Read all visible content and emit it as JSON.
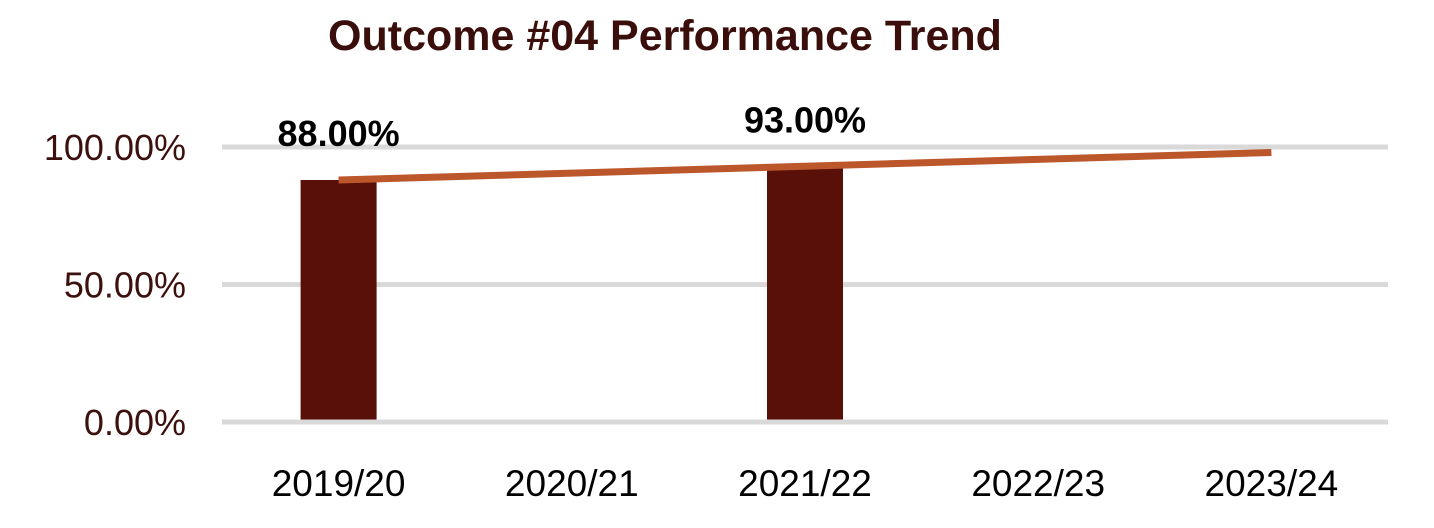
{
  "chart_data": {
    "type": "bar",
    "title": "Outcome #04 Performance Trend",
    "categories": [
      "2019/20",
      "2020/21",
      "2021/22",
      "2022/23",
      "2023/24"
    ],
    "series": [
      {
        "name": "Outcome #04",
        "values": [
          88,
          null,
          93,
          null,
          null
        ]
      }
    ],
    "data_labels": [
      "88.00%",
      null,
      "93.00%",
      null,
      null
    ],
    "trendline": {
      "start_value": 88,
      "end_value": 98
    },
    "xlabel": "",
    "ylabel": "",
    "ylim": [
      0,
      100
    ],
    "yticks": [
      0,
      50,
      100
    ],
    "ytick_labels": [
      "0.00%",
      "50.00%",
      "100.00%"
    ],
    "grid": true,
    "legend": false,
    "colors": {
      "bar": "#581008",
      "trendline": "#BC562B",
      "gridline": "#D9D9D9",
      "title": "#3A0F0B",
      "ytick_label": "#3B100D",
      "xtick_label": "#000000",
      "data_label": "#000000"
    }
  }
}
